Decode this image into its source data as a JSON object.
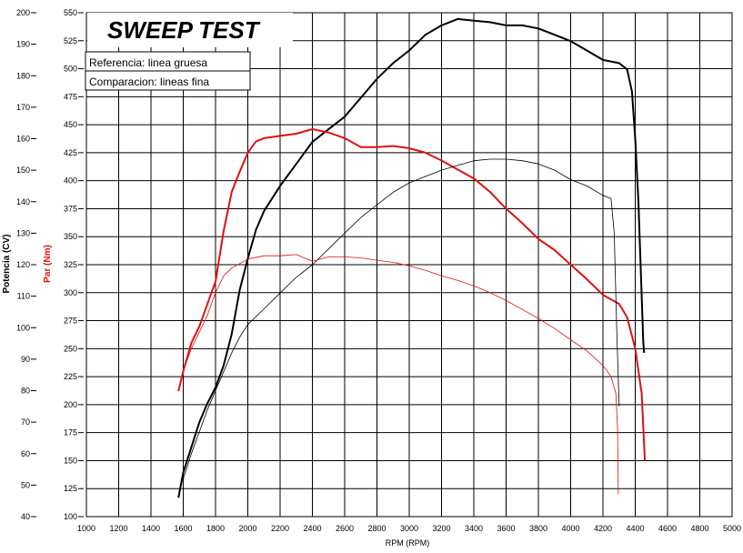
{
  "chart_data": {
    "type": "line",
    "title": "SWEEP TEST",
    "xlabel": "RPM (RPM)",
    "ylabel_left": "Potencia (CV)",
    "ylabel_right": "Par (Nm)",
    "xlim": [
      1000,
      5000
    ],
    "ylim_left": [
      40,
      200
    ],
    "ylim_right": [
      100,
      550
    ],
    "x_ticks": [
      "1000",
      "1200",
      "1400",
      "1600",
      "1800",
      "2000",
      "2200",
      "2400",
      "2600",
      "2800",
      "3000",
      "3200",
      "3400",
      "3600",
      "3800",
      "4000",
      "4200",
      "4400",
      "4600",
      "4800",
      "5000"
    ],
    "y_left_ticks": [
      "40",
      "50",
      "60",
      "70",
      "80",
      "90",
      "100",
      "110",
      "120",
      "130",
      "140",
      "150",
      "160",
      "170",
      "180",
      "190",
      "200"
    ],
    "y_right_ticks": [
      "100",
      "125",
      "150",
      "175",
      "200",
      "225",
      "250",
      "275",
      "300",
      "325",
      "350",
      "375",
      "400",
      "425",
      "450",
      "475",
      "500",
      "525",
      "550"
    ],
    "grid": true,
    "legend": [
      {
        "text": "Referencia: linea gruesa"
      },
      {
        "text": "Comparacion: lineas fina"
      }
    ],
    "series": [
      {
        "name": "Potencia referencia",
        "axis": "left",
        "color": "#000000",
        "width": "thick",
        "points": [
          [
            1570,
            46
          ],
          [
            1600,
            54
          ],
          [
            1650,
            62
          ],
          [
            1700,
            70
          ],
          [
            1750,
            76
          ],
          [
            1800,
            81
          ],
          [
            1850,
            88
          ],
          [
            1900,
            98
          ],
          [
            1950,
            112
          ],
          [
            2000,
            122
          ],
          [
            2050,
            131
          ],
          [
            2100,
            137
          ],
          [
            2200,
            145
          ],
          [
            2300,
            152
          ],
          [
            2400,
            159
          ],
          [
            2500,
            163
          ],
          [
            2600,
            167
          ],
          [
            2700,
            173
          ],
          [
            2800,
            179
          ],
          [
            2900,
            184
          ],
          [
            3000,
            188
          ],
          [
            3100,
            193
          ],
          [
            3200,
            196
          ],
          [
            3300,
            198
          ],
          [
            3400,
            197.5
          ],
          [
            3500,
            197
          ],
          [
            3600,
            196
          ],
          [
            3700,
            196
          ],
          [
            3800,
            195
          ],
          [
            3900,
            193
          ],
          [
            4000,
            191
          ],
          [
            4100,
            188
          ],
          [
            4200,
            185
          ],
          [
            4300,
            184
          ],
          [
            4350,
            182
          ],
          [
            4380,
            175
          ],
          [
            4400,
            160
          ],
          [
            4420,
            140
          ],
          [
            4440,
            110
          ],
          [
            4450,
            95
          ],
          [
            4455,
            92
          ]
        ]
      },
      {
        "name": "Par referencia",
        "axis": "right",
        "color": "#e01010",
        "width": "thick",
        "points": [
          [
            1570,
            212
          ],
          [
            1600,
            230
          ],
          [
            1650,
            255
          ],
          [
            1700,
            270
          ],
          [
            1750,
            290
          ],
          [
            1800,
            310
          ],
          [
            1850,
            355
          ],
          [
            1900,
            390
          ],
          [
            1950,
            408
          ],
          [
            2000,
            425
          ],
          [
            2050,
            435
          ],
          [
            2100,
            438
          ],
          [
            2200,
            440
          ],
          [
            2300,
            442
          ],
          [
            2400,
            446
          ],
          [
            2500,
            443
          ],
          [
            2600,
            438
          ],
          [
            2700,
            430
          ],
          [
            2800,
            430
          ],
          [
            2900,
            431
          ],
          [
            3000,
            429
          ],
          [
            3100,
            425
          ],
          [
            3200,
            418
          ],
          [
            3300,
            410
          ],
          [
            3400,
            402
          ],
          [
            3500,
            390
          ],
          [
            3600,
            375
          ],
          [
            3700,
            362
          ],
          [
            3800,
            348
          ],
          [
            3900,
            338
          ],
          [
            4000,
            325
          ],
          [
            4100,
            312
          ],
          [
            4200,
            298
          ],
          [
            4300,
            290
          ],
          [
            4350,
            278
          ],
          [
            4400,
            250
          ],
          [
            4440,
            210
          ],
          [
            4460,
            150
          ]
        ]
      },
      {
        "name": "Potencia comparacion",
        "axis": "left",
        "color": "#000000",
        "width": "thin",
        "points": [
          [
            1600,
            52
          ],
          [
            1650,
            60
          ],
          [
            1700,
            67
          ],
          [
            1750,
            74
          ],
          [
            1800,
            80
          ],
          [
            1850,
            86
          ],
          [
            1900,
            92
          ],
          [
            1950,
            97
          ],
          [
            2000,
            101
          ],
          [
            2100,
            106
          ],
          [
            2200,
            111
          ],
          [
            2300,
            116
          ],
          [
            2400,
            120
          ],
          [
            2500,
            125
          ],
          [
            2600,
            130
          ],
          [
            2700,
            135
          ],
          [
            2800,
            139
          ],
          [
            2900,
            143
          ],
          [
            3000,
            146
          ],
          [
            3100,
            148
          ],
          [
            3200,
            150
          ],
          [
            3300,
            151.5
          ],
          [
            3400,
            153
          ],
          [
            3500,
            153.5
          ],
          [
            3600,
            153.5
          ],
          [
            3700,
            153
          ],
          [
            3800,
            152
          ],
          [
            3900,
            150
          ],
          [
            4000,
            147
          ],
          [
            4100,
            145
          ],
          [
            4200,
            142
          ],
          [
            4250,
            141
          ],
          [
            4270,
            130
          ],
          [
            4285,
            100
          ],
          [
            4300,
            75
          ]
        ]
      },
      {
        "name": "Par comparacion",
        "axis": "right",
        "color": "#e01010",
        "width": "thin",
        "points": [
          [
            1600,
            230
          ],
          [
            1650,
            250
          ],
          [
            1700,
            265
          ],
          [
            1750,
            280
          ],
          [
            1800,
            300
          ],
          [
            1850,
            315
          ],
          [
            1900,
            322
          ],
          [
            1950,
            326
          ],
          [
            2000,
            330
          ],
          [
            2100,
            333
          ],
          [
            2200,
            333
          ],
          [
            2300,
            334
          ],
          [
            2400,
            328
          ],
          [
            2500,
            332
          ],
          [
            2600,
            332
          ],
          [
            2700,
            331
          ],
          [
            2800,
            329
          ],
          [
            2900,
            327
          ],
          [
            3000,
            324
          ],
          [
            3100,
            320
          ],
          [
            3200,
            315
          ],
          [
            3300,
            311
          ],
          [
            3400,
            306
          ],
          [
            3500,
            300
          ],
          [
            3600,
            293
          ],
          [
            3700,
            285
          ],
          [
            3800,
            277
          ],
          [
            3900,
            268
          ],
          [
            4000,
            258
          ],
          [
            4100,
            248
          ],
          [
            4200,
            235
          ],
          [
            4250,
            225
          ],
          [
            4280,
            210
          ],
          [
            4290,
            180
          ],
          [
            4295,
            120
          ]
        ]
      }
    ]
  }
}
